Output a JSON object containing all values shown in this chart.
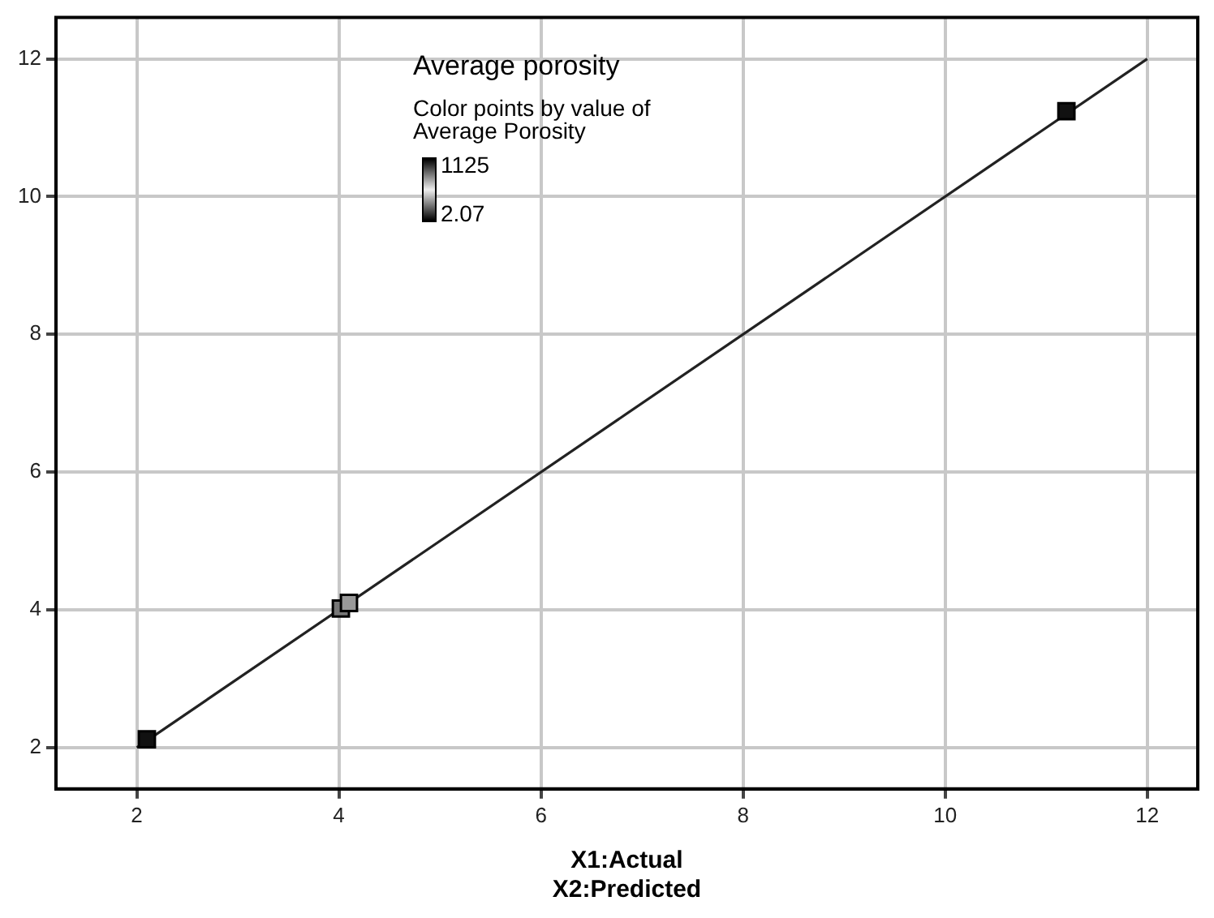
{
  "chart_data": {
    "type": "scatter",
    "title": "Average porosity",
    "xlabel": "X1:Actual\nX2:Predicted",
    "annotations": [
      "Color points by value of\nAverage Porosity",
      "1125",
      "2.07"
    ],
    "xlim": [
      1.2,
      12.5
    ],
    "ylim": [
      1.4,
      12.6
    ],
    "xticks": [
      2,
      4,
      6,
      8,
      10,
      12
    ],
    "yticks": [
      2,
      4,
      6,
      8,
      10,
      12
    ],
    "grid": true,
    "marker": "square",
    "series": [
      {
        "x": [
          2.1,
          4.02,
          4.1,
          11.2
        ],
        "values": [
          2.12,
          4.02,
          4.1,
          11.24
        ],
        "colors": [
          "#111111",
          "#777777",
          "#999999",
          "#111111"
        ]
      },
      {
        "type": "line",
        "color": "#222222",
        "x": [
          2,
          12
        ],
        "values": [
          2,
          12
        ],
        "line_style": "solid",
        "marker": "none"
      }
    ]
  }
}
